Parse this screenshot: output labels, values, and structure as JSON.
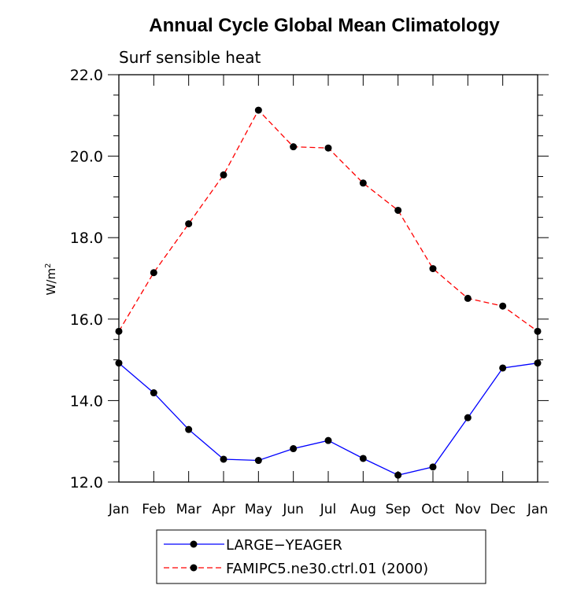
{
  "chart_data": {
    "type": "line",
    "title": "Annual Cycle Global Mean Climatology",
    "subtitle": "Surf sensible heat",
    "ylabel": "W/m",
    "ylabel_superscript": "2",
    "xlabel": "",
    "categories": [
      "Jan",
      "Feb",
      "Mar",
      "Apr",
      "May",
      "Jun",
      "Jul",
      "Aug",
      "Sep",
      "Oct",
      "Nov",
      "Dec",
      "Jan"
    ],
    "ylim": [
      12.0,
      22.0
    ],
    "yticks": [
      "12.0",
      "14.0",
      "16.0",
      "18.0",
      "20.0",
      "22.0"
    ],
    "grid": false,
    "legend_position": "bottom",
    "series": [
      {
        "name": "LARGE−YEAGER",
        "color": "#0000ff",
        "dash": "solid",
        "values": [
          14.92,
          14.19,
          13.29,
          12.56,
          12.53,
          12.82,
          13.02,
          12.58,
          12.17,
          12.37,
          13.58,
          14.8,
          14.92
        ]
      },
      {
        "name": "FAMIPC5.ne30.ctrl.01 (2000)",
        "color": "#ff0000",
        "dash": "dashed",
        "values": [
          15.7,
          17.14,
          18.34,
          19.54,
          21.13,
          20.23,
          20.2,
          19.34,
          18.67,
          17.24,
          16.51,
          16.32,
          15.7
        ]
      }
    ]
  }
}
